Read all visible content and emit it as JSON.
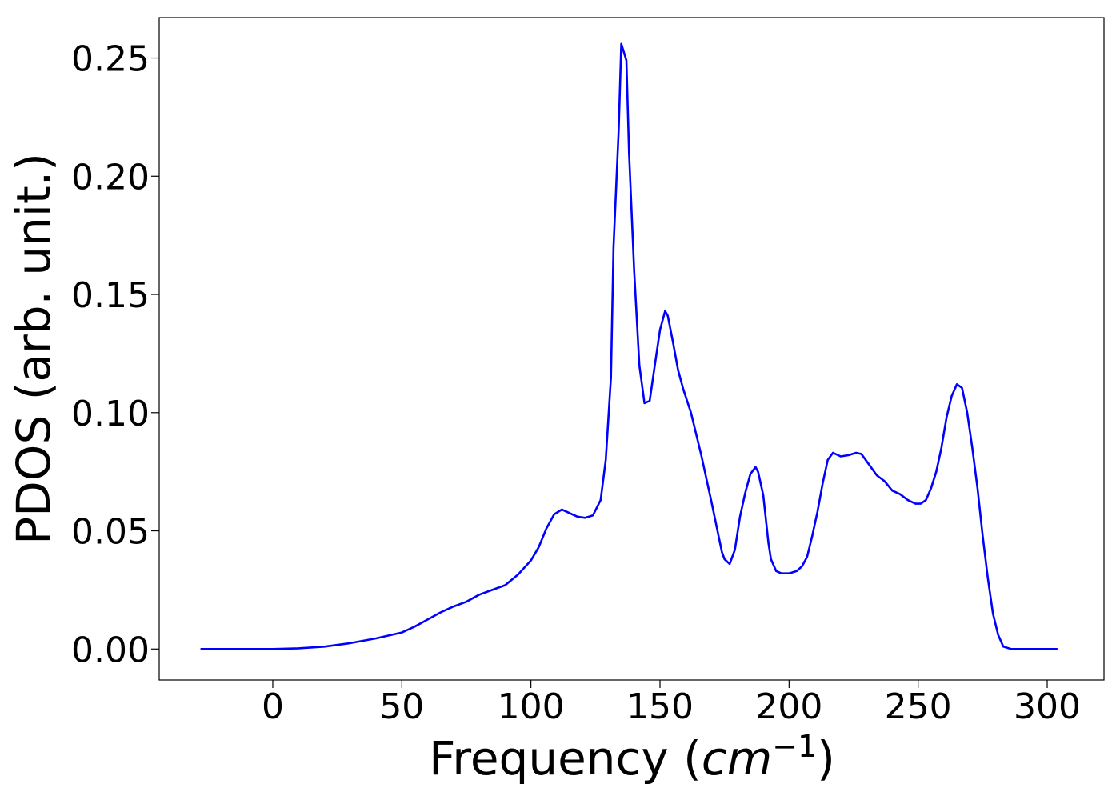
{
  "chart_data": {
    "type": "line",
    "title": "",
    "xlabel_text": "Frequency (",
    "xlabel_italic": "cm",
    "xlabel_sup": "−1",
    "xlabel_close": ")",
    "ylabel": "PDOS (arb. unit.)",
    "xlim": [
      -44,
      322
    ],
    "ylim": [
      -0.0131,
      0.2671
    ],
    "xticks": [
      0,
      50,
      100,
      150,
      200,
      250,
      300
    ],
    "xtick_labels": [
      "0",
      "50",
      "100",
      "150",
      "200",
      "250",
      "300"
    ],
    "yticks": [
      0.0,
      0.05,
      0.1,
      0.15,
      0.2,
      0.25
    ],
    "ytick_labels": [
      "0.00",
      "0.05",
      "0.10",
      "0.15",
      "0.20",
      "0.25"
    ],
    "grid": false,
    "line_color": "#0000ff",
    "series": [
      {
        "x": [
          -28,
          0,
          10,
          20,
          30,
          40,
          50,
          55,
          60,
          65,
          70,
          75,
          80,
          85,
          90,
          95,
          100,
          103,
          106,
          109,
          112,
          115,
          118,
          121,
          124,
          127,
          129,
          131,
          132,
          134,
          135,
          137,
          138,
          140,
          142,
          144,
          146,
          148,
          150,
          152,
          153,
          155,
          157,
          159,
          162,
          166,
          170,
          174,
          175,
          177,
          179,
          181,
          183,
          185,
          187,
          188,
          190,
          192,
          193,
          195,
          197,
          200,
          203,
          205,
          207,
          209,
          211,
          213,
          215,
          217,
          220,
          223,
          226,
          228,
          231,
          234,
          237,
          240,
          243,
          246,
          249,
          251,
          253,
          255,
          257,
          259,
          261,
          263,
          265,
          267,
          269,
          271,
          273,
          275,
          277,
          279,
          281,
          283,
          286,
          290,
          300,
          304
        ],
        "y": [
          0.0,
          0.0,
          0.0003,
          0.001,
          0.0025,
          0.0045,
          0.007,
          0.0095,
          0.0125,
          0.0155,
          0.018,
          0.02,
          0.023,
          0.025,
          0.027,
          0.0315,
          0.0375,
          0.043,
          0.051,
          0.057,
          0.059,
          0.0575,
          0.056,
          0.0555,
          0.0565,
          0.063,
          0.08,
          0.115,
          0.17,
          0.22,
          0.256,
          0.249,
          0.21,
          0.16,
          0.12,
          0.104,
          0.105,
          0.12,
          0.135,
          0.143,
          0.141,
          0.13,
          0.118,
          0.11,
          0.1,
          0.082,
          0.062,
          0.041,
          0.038,
          0.036,
          0.042,
          0.056,
          0.066,
          0.074,
          0.077,
          0.075,
          0.065,
          0.045,
          0.038,
          0.033,
          0.032,
          0.032,
          0.033,
          0.035,
          0.039,
          0.048,
          0.058,
          0.07,
          0.08,
          0.083,
          0.0815,
          0.082,
          0.083,
          0.0825,
          0.078,
          0.0735,
          0.071,
          0.067,
          0.0655,
          0.063,
          0.0615,
          0.0615,
          0.063,
          0.068,
          0.075,
          0.085,
          0.098,
          0.107,
          0.112,
          0.1105,
          0.1,
          0.085,
          0.068,
          0.048,
          0.03,
          0.015,
          0.006,
          0.001,
          0.0,
          0.0,
          0.0,
          0.0
        ]
      }
    ]
  }
}
